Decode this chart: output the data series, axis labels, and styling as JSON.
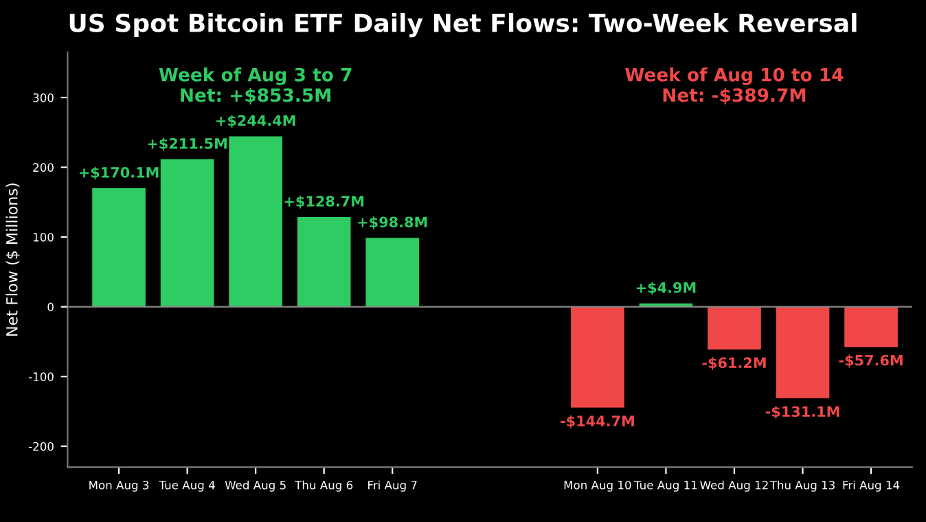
{
  "chart_data": {
    "type": "bar",
    "title": "US Spot Bitcoin ETF Daily Net Flows: Two-Week Reversal",
    "ylabel": "Net Flow ($ Millions)",
    "categories": [
      "Mon Aug 3",
      "Tue Aug 4",
      "Wed Aug 5",
      "Thu Aug 6",
      "Fri Aug 7",
      null,
      null,
      "Mon Aug 10",
      "Tue Aug 11",
      "Wed Aug 12",
      "Thu Aug 13",
      "Fri Aug 14"
    ],
    "values": [
      170.1,
      211.5,
      244.4,
      128.7,
      98.8,
      null,
      null,
      -144.7,
      4.9,
      -61.2,
      -131.1,
      -57.6
    ],
    "colors": [
      "#2ecc63",
      "#2ecc63",
      "#2ecc63",
      "#2ecc63",
      "#2ecc63",
      null,
      null,
      "#f04848",
      "#2ecc63",
      "#f04848",
      "#f04848",
      "#f04848"
    ],
    "value_labels": [
      "+$170.1M",
      "+$211.5M",
      "+$244.4M",
      "+$128.7M",
      "+$98.8M",
      null,
      null,
      "-$144.7M",
      "+$4.9M",
      "-$61.2M",
      "-$131.1M",
      "-$57.6M"
    ],
    "annotations": [
      "Week of Aug 3 to 7\nNet: +$853.5M",
      "Week of Aug 10 to 14\nNet: -$389.7M"
    ],
    "ref_lines": [
      {
        "axis": "y",
        "value": 0,
        "color": "#888888"
      }
    ],
    "ylim": [
      -230,
      365
    ],
    "yticks": [
      -200,
      -100,
      0,
      100,
      200,
      300
    ],
    "grid": false,
    "legend": false
  }
}
